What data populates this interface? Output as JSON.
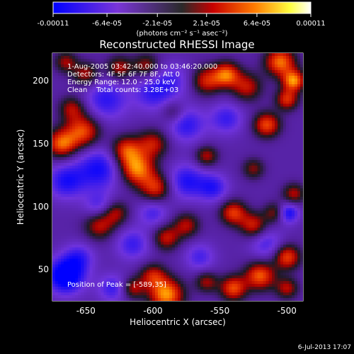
{
  "colorbar": {
    "ticks": [
      "-0.00011",
      "-6.4e-05",
      "-2.1e-05",
      "2.1e-05",
      "6.4e-05",
      "0.00011"
    ],
    "tick_values": [
      -0.00011,
      -6.4e-05,
      -2.1e-05,
      2.1e-05,
      6.4e-05,
      0.00011
    ],
    "unit_label": "(photons cm⁻² s⁻¹ asec⁻²)",
    "colors": [
      "#0000ff",
      "#7a35d8",
      "#2a2a2a",
      "#c80000",
      "#ff7a00",
      "#ffff40",
      "#ffffff"
    ]
  },
  "chart_data": {
    "type": "heatmap",
    "title": "Reconstructed RHESSI Image",
    "xlabel": "Heliocentric X (arcsec)",
    "ylabel": "Heliocentric Y (arcsec)",
    "xlim": [
      -675,
      -488
    ],
    "ylim": [
      25,
      222
    ],
    "x_ticks": [
      "-650",
      "-600",
      "-550",
      "-500"
    ],
    "x_tick_values": [
      -650,
      -600,
      -550,
      -500
    ],
    "y_ticks": [
      "50",
      "100",
      "150",
      "200"
    ],
    "y_tick_values": [
      50,
      100,
      150,
      200
    ],
    "annotations": [
      "1-Aug-2005 03:42:40.000 to 03:46:20.000",
      "Detectors: 4F 5F 6F 7F 8F, Att 0",
      "Energy Range: 12.0 - 25.0 keV",
      "Clean    Total counts: 3.28E+03"
    ],
    "peak_label": "Position of Peak = [-589,35]",
    "peak_position": [
      -589,
      35
    ],
    "blobs": [
      {
        "x": -668,
        "y": 150,
        "v": 0.85,
        "s": 8
      },
      {
        "x": -652,
        "y": 160,
        "v": 0.8,
        "s": 9
      },
      {
        "x": -660,
        "y": 178,
        "v": 0.55,
        "s": 7
      },
      {
        "x": -665,
        "y": 120,
        "v": -0.55,
        "s": 10
      },
      {
        "x": -640,
        "y": 130,
        "v": -0.6,
        "s": 12
      },
      {
        "x": -665,
        "y": 45,
        "v": -0.9,
        "s": 10
      },
      {
        "x": -655,
        "y": 60,
        "v": -0.4,
        "s": 8
      },
      {
        "x": -640,
        "y": 85,
        "v": 0.6,
        "s": 8
      },
      {
        "x": -628,
        "y": 95,
        "v": 0.55,
        "s": 7
      },
      {
        "x": -612,
        "y": 130,
        "v": 0.95,
        "s": 9
      },
      {
        "x": -598,
        "y": 115,
        "v": 0.7,
        "s": 8
      },
      {
        "x": -620,
        "y": 145,
        "v": 0.75,
        "s": 8
      },
      {
        "x": -600,
        "y": 150,
        "v": 0.6,
        "s": 8
      },
      {
        "x": -635,
        "y": 185,
        "v": -0.5,
        "s": 12
      },
      {
        "x": -600,
        "y": 190,
        "v": -0.45,
        "s": 10
      },
      {
        "x": -625,
        "y": 210,
        "v": 0.55,
        "s": 7
      },
      {
        "x": -605,
        "y": 212,
        "v": 0.5,
        "s": 7
      },
      {
        "x": -585,
        "y": 200,
        "v": -0.35,
        "s": 10
      },
      {
        "x": -560,
        "y": 200,
        "v": 0.65,
        "s": 8
      },
      {
        "x": -545,
        "y": 205,
        "v": 0.85,
        "s": 7
      },
      {
        "x": -530,
        "y": 195,
        "v": 0.6,
        "s": 8
      },
      {
        "x": -505,
        "y": 215,
        "v": 0.9,
        "s": 8
      },
      {
        "x": -495,
        "y": 200,
        "v": 0.95,
        "s": 6
      },
      {
        "x": -500,
        "y": 185,
        "v": 0.7,
        "s": 6
      },
      {
        "x": -515,
        "y": 165,
        "v": 0.8,
        "s": 7
      },
      {
        "x": -545,
        "y": 170,
        "v": -0.45,
        "s": 9
      },
      {
        "x": -575,
        "y": 165,
        "v": -0.5,
        "s": 10
      },
      {
        "x": -560,
        "y": 140,
        "v": 0.55,
        "s": 6
      },
      {
        "x": -575,
        "y": 120,
        "v": -0.55,
        "s": 10
      },
      {
        "x": -555,
        "y": 115,
        "v": -0.5,
        "s": 8
      },
      {
        "x": -525,
        "y": 130,
        "v": 0.45,
        "s": 6
      },
      {
        "x": -540,
        "y": 95,
        "v": 0.75,
        "s": 7
      },
      {
        "x": -525,
        "y": 85,
        "v": 0.65,
        "s": 7
      },
      {
        "x": -508,
        "y": 95,
        "v": 0.6,
        "s": 6
      },
      {
        "x": -495,
        "y": 110,
        "v": 0.55,
        "s": 6
      },
      {
        "x": -500,
        "y": 95,
        "v": -0.75,
        "s": 6
      },
      {
        "x": -515,
        "y": 70,
        "v": -0.4,
        "s": 9
      },
      {
        "x": -500,
        "y": 60,
        "v": 0.8,
        "s": 7
      },
      {
        "x": -520,
        "y": 45,
        "v": 0.85,
        "s": 8
      },
      {
        "x": -540,
        "y": 35,
        "v": 0.8,
        "s": 7
      },
      {
        "x": -500,
        "y": 35,
        "v": 0.55,
        "s": 6
      },
      {
        "x": -565,
        "y": 60,
        "v": -0.4,
        "s": 8
      },
      {
        "x": -560,
        "y": 40,
        "v": 0.5,
        "s": 6
      },
      {
        "x": -590,
        "y": 30,
        "v": 1.0,
        "s": 9
      },
      {
        "x": -600,
        "y": 45,
        "v": 0.6,
        "s": 7
      },
      {
        "x": -615,
        "y": 35,
        "v": 0.55,
        "s": 6
      },
      {
        "x": -630,
        "y": 35,
        "v": -0.45,
        "s": 8
      },
      {
        "x": -615,
        "y": 70,
        "v": -0.45,
        "s": 9
      },
      {
        "x": -590,
        "y": 75,
        "v": 0.6,
        "s": 7
      },
      {
        "x": -575,
        "y": 85,
        "v": 0.55,
        "s": 7
      },
      {
        "x": -600,
        "y": 95,
        "v": -0.4,
        "s": 8
      },
      {
        "x": -640,
        "y": 100,
        "v": -0.4,
        "s": 8
      },
      {
        "x": -585,
        "y": 175,
        "v": 0.35,
        "s": 6
      },
      {
        "x": -650,
        "y": 205,
        "v": 0.55,
        "s": 7
      },
      {
        "x": -665,
        "y": 215,
        "v": 0.5,
        "s": 6
      }
    ]
  },
  "footer": {
    "date": "6-Jul-2013 17:07"
  }
}
